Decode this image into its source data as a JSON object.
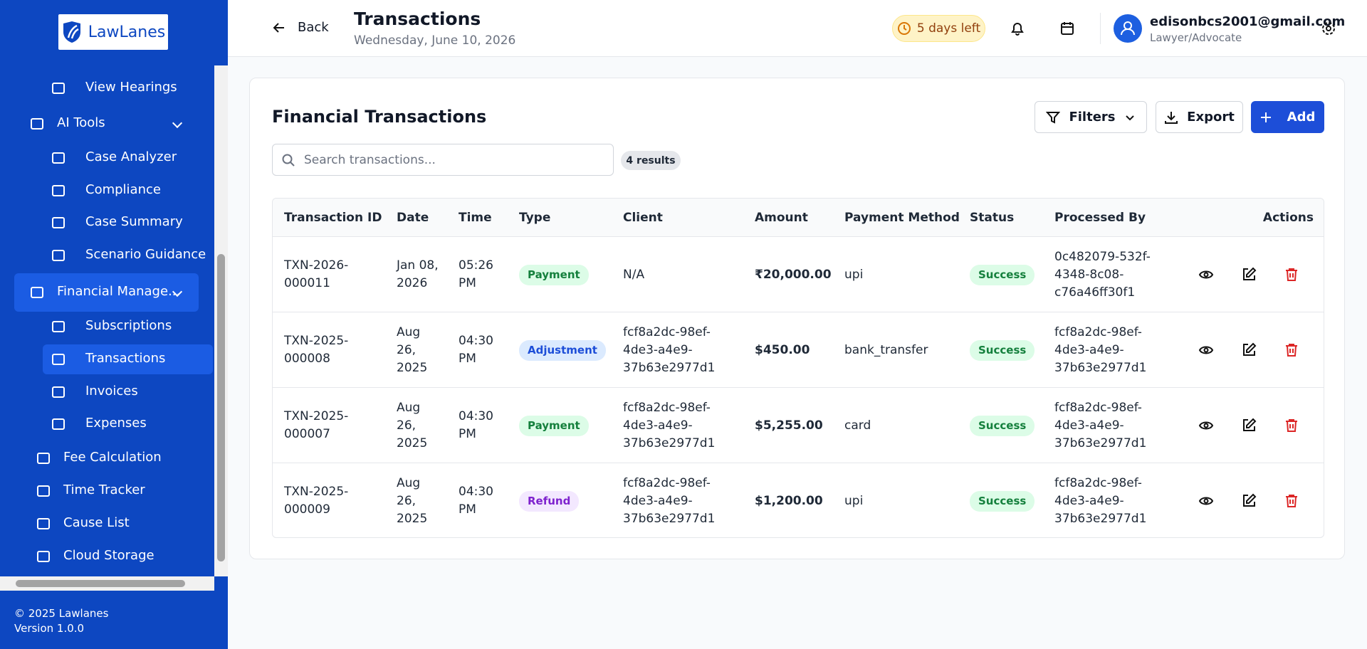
{
  "sidebar": {
    "logo": "LawLanes",
    "nav": [
      {
        "items": [
          {
            "label": "View Hearings"
          }
        ]
      },
      {
        "label": "AI Tools",
        "items": [
          {
            "label": "Case Analyzer"
          },
          {
            "label": "Compliance"
          },
          {
            "label": "Case Summary"
          },
          {
            "label": "Scenario Guidance"
          }
        ]
      },
      {
        "label": "Financial Manage...",
        "active": true,
        "items": [
          {
            "label": "Subscriptions"
          },
          {
            "label": "Transactions",
            "active": true
          },
          {
            "label": "Invoices"
          },
          {
            "label": "Expenses"
          }
        ]
      },
      {
        "label": "Fee Calculation"
      },
      {
        "label": "Time Tracker"
      },
      {
        "label": "Cause List"
      },
      {
        "label": "Cloud Storage"
      }
    ],
    "footer": {
      "copyright": "© 2025 Lawlanes",
      "version": "Version 1.0.0"
    }
  },
  "header": {
    "back": "Back",
    "title": "Transactions",
    "date": "Wednesday, June 10, 2026",
    "trial": "5 days left",
    "user": {
      "email": "edisonbcs2001@gmail.com",
      "role": "Lawyer/Advocate"
    }
  },
  "panel": {
    "title": "Financial Transactions",
    "filters": "Filters",
    "export": "Export",
    "add": "Add",
    "search_placeholder": "Search transactions...",
    "result_count": "4 results"
  },
  "table": {
    "columns": [
      "Transaction ID",
      "Date",
      "Time",
      "Type",
      "Client",
      "Amount",
      "Payment Method",
      "Status",
      "Processed By",
      "Actions"
    ],
    "rows": [
      {
        "id": "TXN-2026-000011",
        "date": "Jan 08, 2026",
        "time": "05:26 PM",
        "type": "Payment",
        "type_color": "#15803d",
        "type_background": "#dcfce7",
        "client": "N/A",
        "amount": "₹20,000.00",
        "payment_method": "upi",
        "status": "Success",
        "processed_by": "0c482079-532f-4348-8c08-c76a46ff30f1"
      },
      {
        "id": "TXN-2025-000008",
        "date": "Aug 26, 2025",
        "time": "04:30 PM",
        "type": "Adjustment",
        "type_color": "#1d4ed8",
        "type_background": "#dbeafe",
        "client": "fcf8a2dc-98ef-4de3-a4e9-37b63e2977d1",
        "amount": "$450.00",
        "payment_method": "bank_transfer",
        "status": "Success",
        "processed_by": "fcf8a2dc-98ef-4de3-a4e9-37b63e2977d1"
      },
      {
        "id": "TXN-2025-000007",
        "date": "Aug 26, 2025",
        "time": "04:30 PM",
        "type": "Payment",
        "type_color": "#15803d",
        "type_background": "#dcfce7",
        "client": "fcf8a2dc-98ef-4de3-a4e9-37b63e2977d1",
        "amount": "$5,255.00",
        "payment_method": "card",
        "status": "Success",
        "processed_by": "fcf8a2dc-98ef-4de3-a4e9-37b63e2977d1"
      },
      {
        "id": "TXN-2025-000009",
        "date": "Aug 26, 2025",
        "time": "04:30 PM",
        "type": "Refund",
        "type_color": "#7e22ce",
        "type_background": "#f3e8ff",
        "client": "fcf8a2dc-98ef-4de3-a4e9-37b63e2977d1",
        "amount": "$1,200.00",
        "payment_method": "upi",
        "status": "Success",
        "processed_by": "fcf8a2dc-98ef-4de3-a4e9-37b63e2977d1"
      }
    ]
  }
}
